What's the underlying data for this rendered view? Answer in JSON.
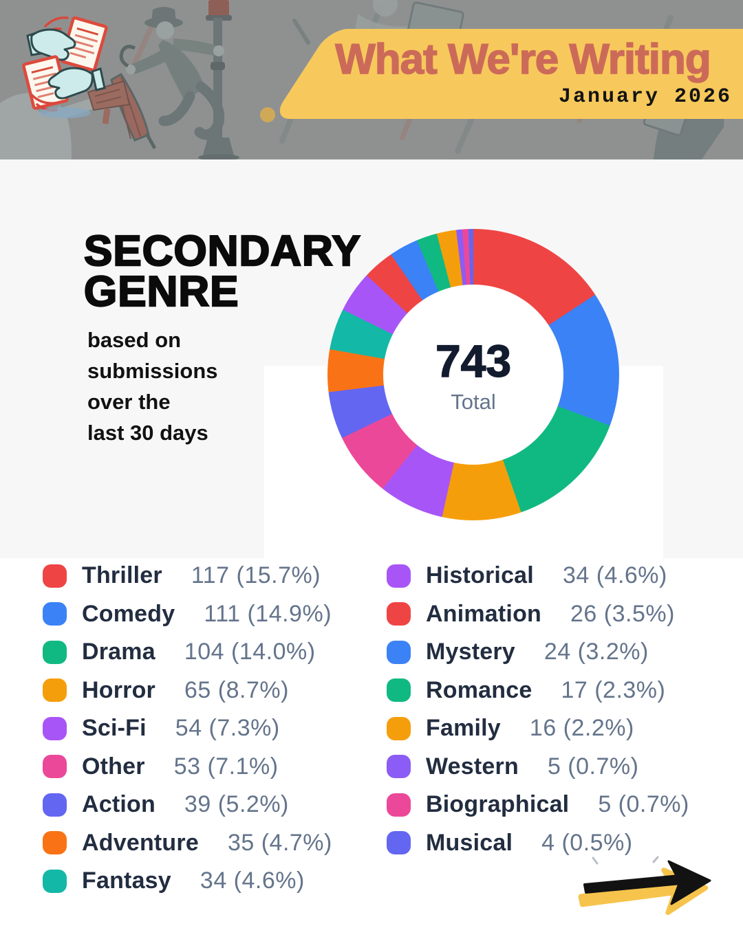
{
  "header": {
    "title": "What We're Writing",
    "date": "January 2026",
    "banner_color": "#F7C95C",
    "title_color": "#CC6A59"
  },
  "main": {
    "title_line1": "SECONDARY",
    "title_line2": "GENRE",
    "subtitle_lines": [
      "based on",
      "submissions",
      "over the",
      "last 30 days"
    ]
  },
  "chart_data": {
    "type": "pie",
    "subtype": "donut",
    "hole_ratio": 0.62,
    "start_angle_deg": 0,
    "direction": "clockwise",
    "legend_position": "bottom",
    "legend_split": 9,
    "center": {
      "value": "743",
      "label": "Total"
    },
    "total": 743,
    "series": [
      {
        "name": "Thriller",
        "value": 117,
        "pct": "15.7%",
        "color": "#EF4444"
      },
      {
        "name": "Comedy",
        "value": 111,
        "pct": "14.9%",
        "color": "#3B82F6"
      },
      {
        "name": "Drama",
        "value": 104,
        "pct": "14.0%",
        "color": "#10B981"
      },
      {
        "name": "Horror",
        "value": 65,
        "pct": "8.7%",
        "color": "#F59E0B"
      },
      {
        "name": "Sci-Fi",
        "value": 54,
        "pct": "7.3%",
        "color": "#A855F7"
      },
      {
        "name": "Other",
        "value": 53,
        "pct": "7.1%",
        "color": "#EC4899"
      },
      {
        "name": "Action",
        "value": 39,
        "pct": "5.2%",
        "color": "#6366F1"
      },
      {
        "name": "Adventure",
        "value": 35,
        "pct": "4.7%",
        "color": "#F97316"
      },
      {
        "name": "Fantasy",
        "value": 34,
        "pct": "4.6%",
        "color": "#14B8A6"
      },
      {
        "name": "Historical",
        "value": 34,
        "pct": "4.6%",
        "color": "#A855F7"
      },
      {
        "name": "Animation",
        "value": 26,
        "pct": "3.5%",
        "color": "#EF4444"
      },
      {
        "name": "Mystery",
        "value": 24,
        "pct": "3.2%",
        "color": "#3B82F6"
      },
      {
        "name": "Romance",
        "value": 17,
        "pct": "2.3%",
        "color": "#10B981"
      },
      {
        "name": "Family",
        "value": 16,
        "pct": "2.2%",
        "color": "#F59E0B"
      },
      {
        "name": "Western",
        "value": 5,
        "pct": "0.7%",
        "color": "#8B5CF6"
      },
      {
        "name": "Biographical",
        "value": 5,
        "pct": "0.7%",
        "color": "#EC4899"
      },
      {
        "name": "Musical",
        "value": 4,
        "pct": "0.5%",
        "color": "#6366F1"
      }
    ]
  }
}
